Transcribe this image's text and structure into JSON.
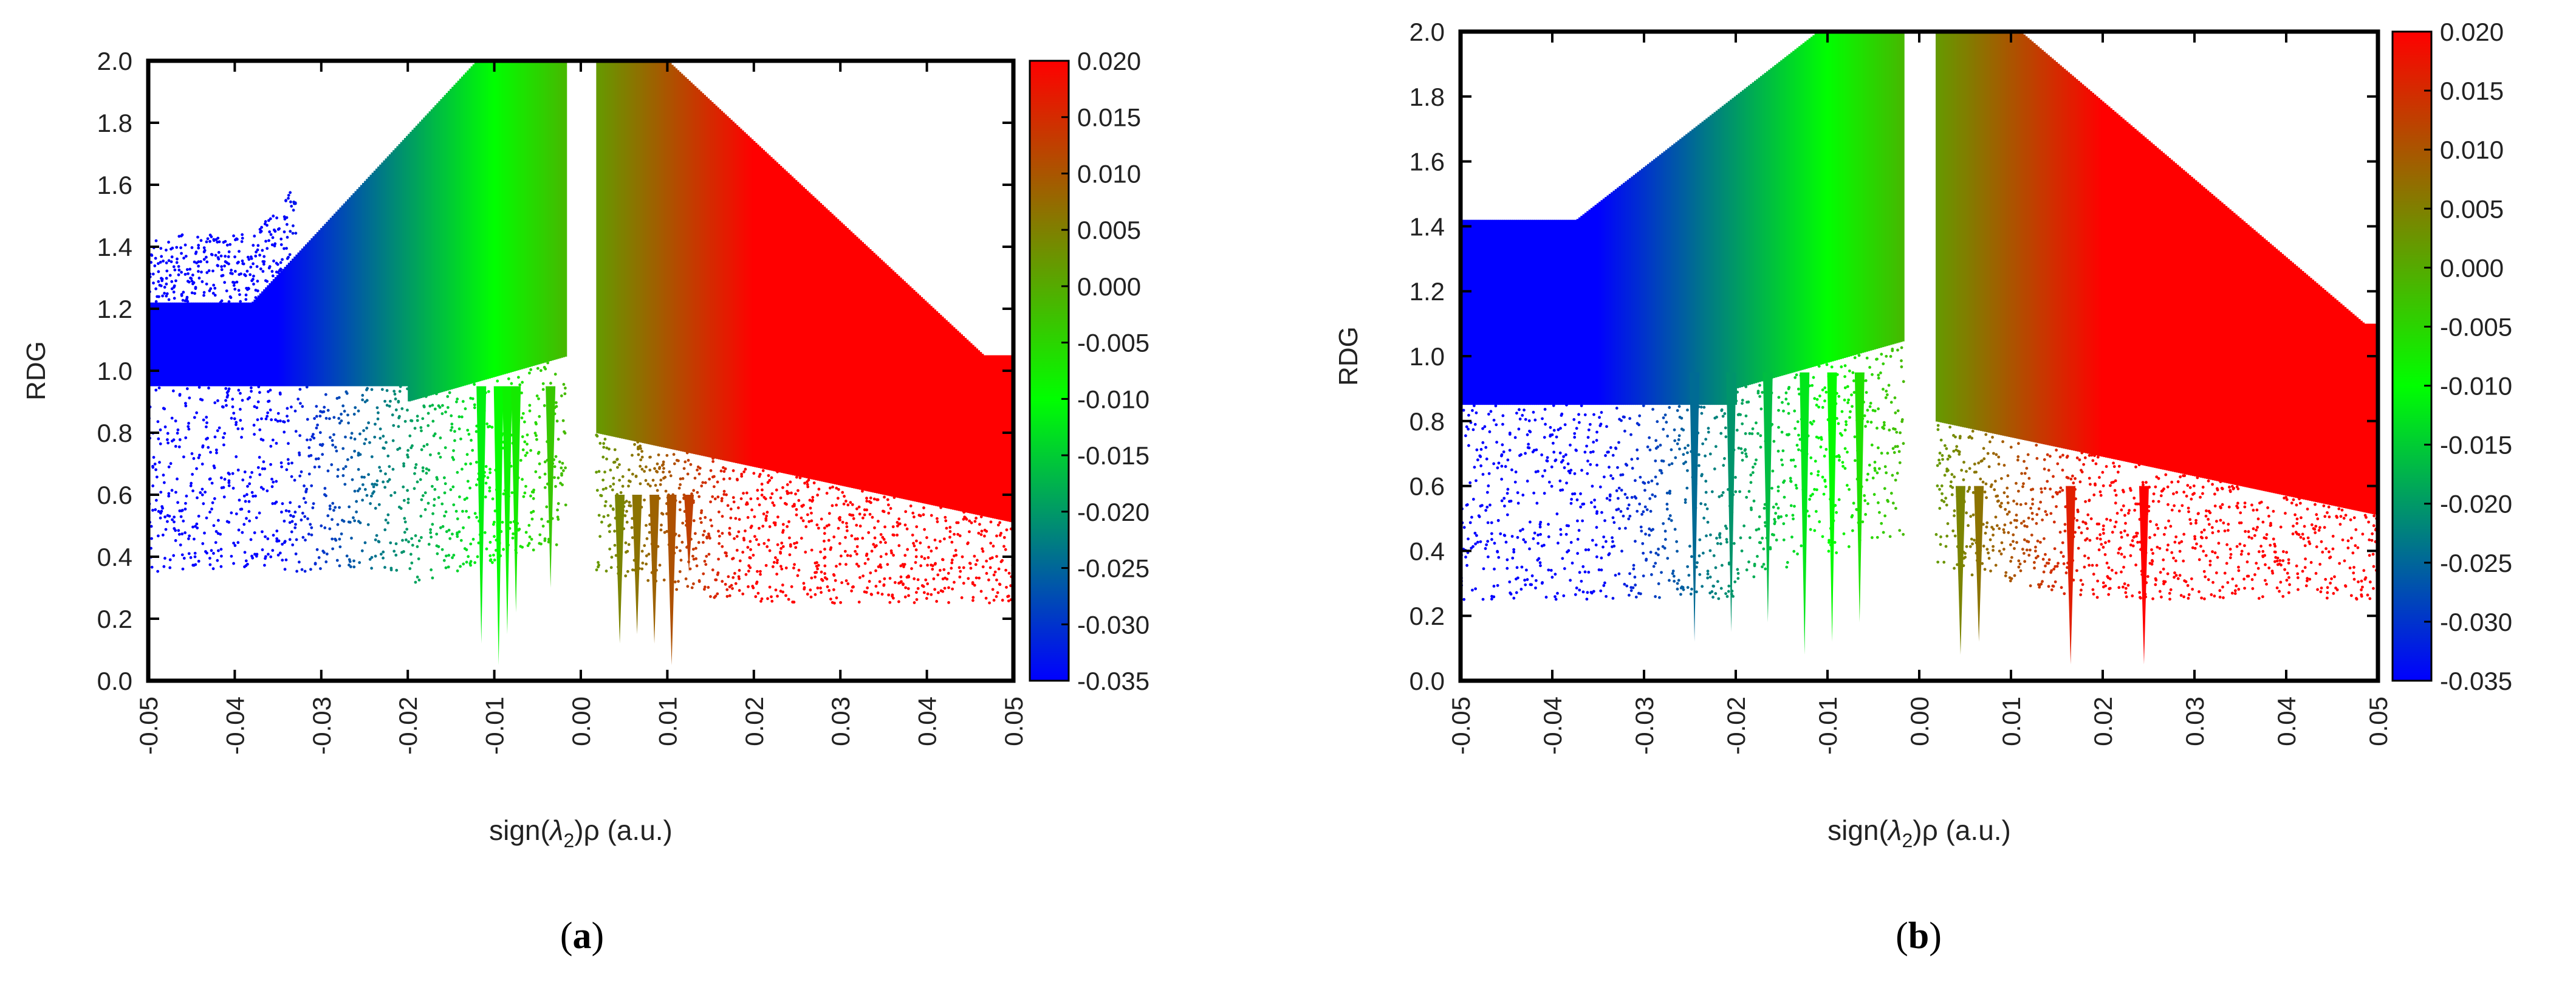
{
  "chart_data": [
    {
      "type": "scatter",
      "panel_label": "(a)",
      "panel_letter": "a",
      "xlabel_prefix": "sign(",
      "xlabel_lambda": "λ",
      "xlabel_sub": "2",
      "xlabel_suffix": ")ρ (a.u.)",
      "ylabel": "RDG",
      "xlim": [
        -0.05,
        0.05
      ],
      "ylim": [
        0.0,
        2.0
      ],
      "x_ticks": [
        "-0.05",
        "-0.04",
        "-0.03",
        "-0.02",
        "-0.01",
        "0.00",
        "0.01",
        "0.02",
        "0.03",
        "0.04",
        "0.05"
      ],
      "y_ticks": [
        "0.0",
        "0.2",
        "0.4",
        "0.6",
        "0.8",
        "1.0",
        "1.2",
        "1.4",
        "1.6",
        "1.8",
        "2.0"
      ],
      "colorbar": {
        "range": [
          -0.035,
          0.02
        ],
        "ticks": [
          "0.020",
          "0.015",
          "0.010",
          "0.005",
          "0.000",
          "-0.005",
          "-0.010",
          "-0.015",
          "-0.020",
          "-0.025",
          "-0.030",
          "-0.035"
        ],
        "stops": [
          {
            "value": -0.035,
            "color": "#0000ff"
          },
          {
            "value": -0.01,
            "color": "#00ff00"
          },
          {
            "value": 0.02,
            "color": "#ff0000"
          }
        ]
      },
      "grid": false,
      "spikes": [
        {
          "x": -0.0115,
          "y": 0.12
        },
        {
          "x": -0.0095,
          "y": 0.05
        },
        {
          "x": -0.0085,
          "y": 0.15
        },
        {
          "x": -0.0075,
          "y": 0.22
        },
        {
          "x": -0.0035,
          "y": 0.3
        },
        {
          "x": 0.0045,
          "y": 0.12
        },
        {
          "x": 0.0065,
          "y": 0.15
        },
        {
          "x": 0.0085,
          "y": 0.12
        },
        {
          "x": 0.0105,
          "y": 0.05
        },
        {
          "x": 0.0125,
          "y": 0.35
        }
      ]
    },
    {
      "type": "scatter",
      "panel_label": "(b)",
      "panel_letter": "b",
      "xlabel_prefix": "sign(",
      "xlabel_lambda": "λ",
      "xlabel_sub": "2",
      "xlabel_suffix": ")ρ (a.u.)",
      "ylabel": "RDG",
      "xlim": [
        -0.05,
        0.05
      ],
      "ylim": [
        0.0,
        2.0
      ],
      "x_ticks": [
        "-0.05",
        "-0.04",
        "-0.03",
        "-0.02",
        "-0.01",
        "0.00",
        "0.01",
        "0.02",
        "0.03",
        "0.04",
        "0.05"
      ],
      "y_ticks": [
        "0.0",
        "0.2",
        "0.4",
        "0.6",
        "0.8",
        "1.0",
        "1.2",
        "1.4",
        "1.6",
        "1.8",
        "2.0"
      ],
      "colorbar": {
        "range": [
          -0.035,
          0.02
        ],
        "ticks": [
          "0.020",
          "0.015",
          "0.010",
          "0.005",
          "0.000",
          "-0.005",
          "-0.010",
          "-0.015",
          "-0.020",
          "-0.025",
          "-0.030",
          "-0.035"
        ],
        "stops": [
          {
            "value": -0.035,
            "color": "#0000ff"
          },
          {
            "value": -0.01,
            "color": "#00ff00"
          },
          {
            "value": 0.02,
            "color": "#ff0000"
          }
        ]
      },
      "grid": false,
      "spikes": [
        {
          "x": -0.0245,
          "y": 0.12
        },
        {
          "x": -0.0205,
          "y": 0.15
        },
        {
          "x": -0.0165,
          "y": 0.18
        },
        {
          "x": -0.0125,
          "y": 0.08
        },
        {
          "x": -0.0095,
          "y": 0.12
        },
        {
          "x": -0.0065,
          "y": 0.18
        },
        {
          "x": 0.0045,
          "y": 0.08
        },
        {
          "x": 0.0065,
          "y": 0.12
        },
        {
          "x": 0.0165,
          "y": 0.05
        },
        {
          "x": 0.0245,
          "y": 0.05
        }
      ]
    }
  ]
}
